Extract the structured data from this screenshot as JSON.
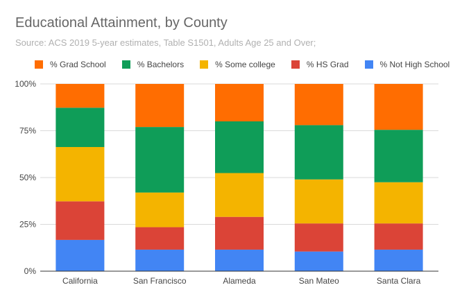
{
  "chart_data": {
    "type": "bar",
    "stacked": true,
    "title": "Educational Attainment, by County",
    "subtitle": "Source: ACS 2019 5-year estimates, Table S1501, Adults Age 25 and Over;",
    "categories": [
      "California",
      "San Francisco",
      "Alameda",
      "San Mateo",
      "Santa Clara"
    ],
    "legend_position": "top",
    "grid": true,
    "ylim": [
      0,
      100
    ],
    "yticks": [
      "0%",
      "25%",
      "50%",
      "75%",
      "100%"
    ],
    "ytick_values": [
      0,
      25,
      50,
      75,
      100
    ],
    "series": [
      {
        "name": "% Not High School",
        "color": "#4285f4",
        "values": [
          16.7,
          11.5,
          11.5,
          10.5,
          11.5
        ]
      },
      {
        "name": "% HS Grad",
        "color": "#db4437",
        "values": [
          20.6,
          12.0,
          17.5,
          15.0,
          14.0
        ]
      },
      {
        "name": "% Some college",
        "color": "#f4b400",
        "values": [
          29.0,
          18.5,
          23.4,
          23.5,
          22.0
        ]
      },
      {
        "name": "% Bachelors",
        "color": "#0f9d58",
        "values": [
          21.0,
          35.0,
          27.6,
          29.0,
          28.0
        ]
      },
      {
        "name": "% Grad School",
        "color": "#ff6d01",
        "values": [
          12.7,
          23.0,
          20.0,
          22.0,
          24.5
        ]
      }
    ],
    "legend_order": [
      "% Grad School",
      "% Bachelors",
      "% Some college",
      "% HS Grad",
      "% Not High School"
    ]
  }
}
